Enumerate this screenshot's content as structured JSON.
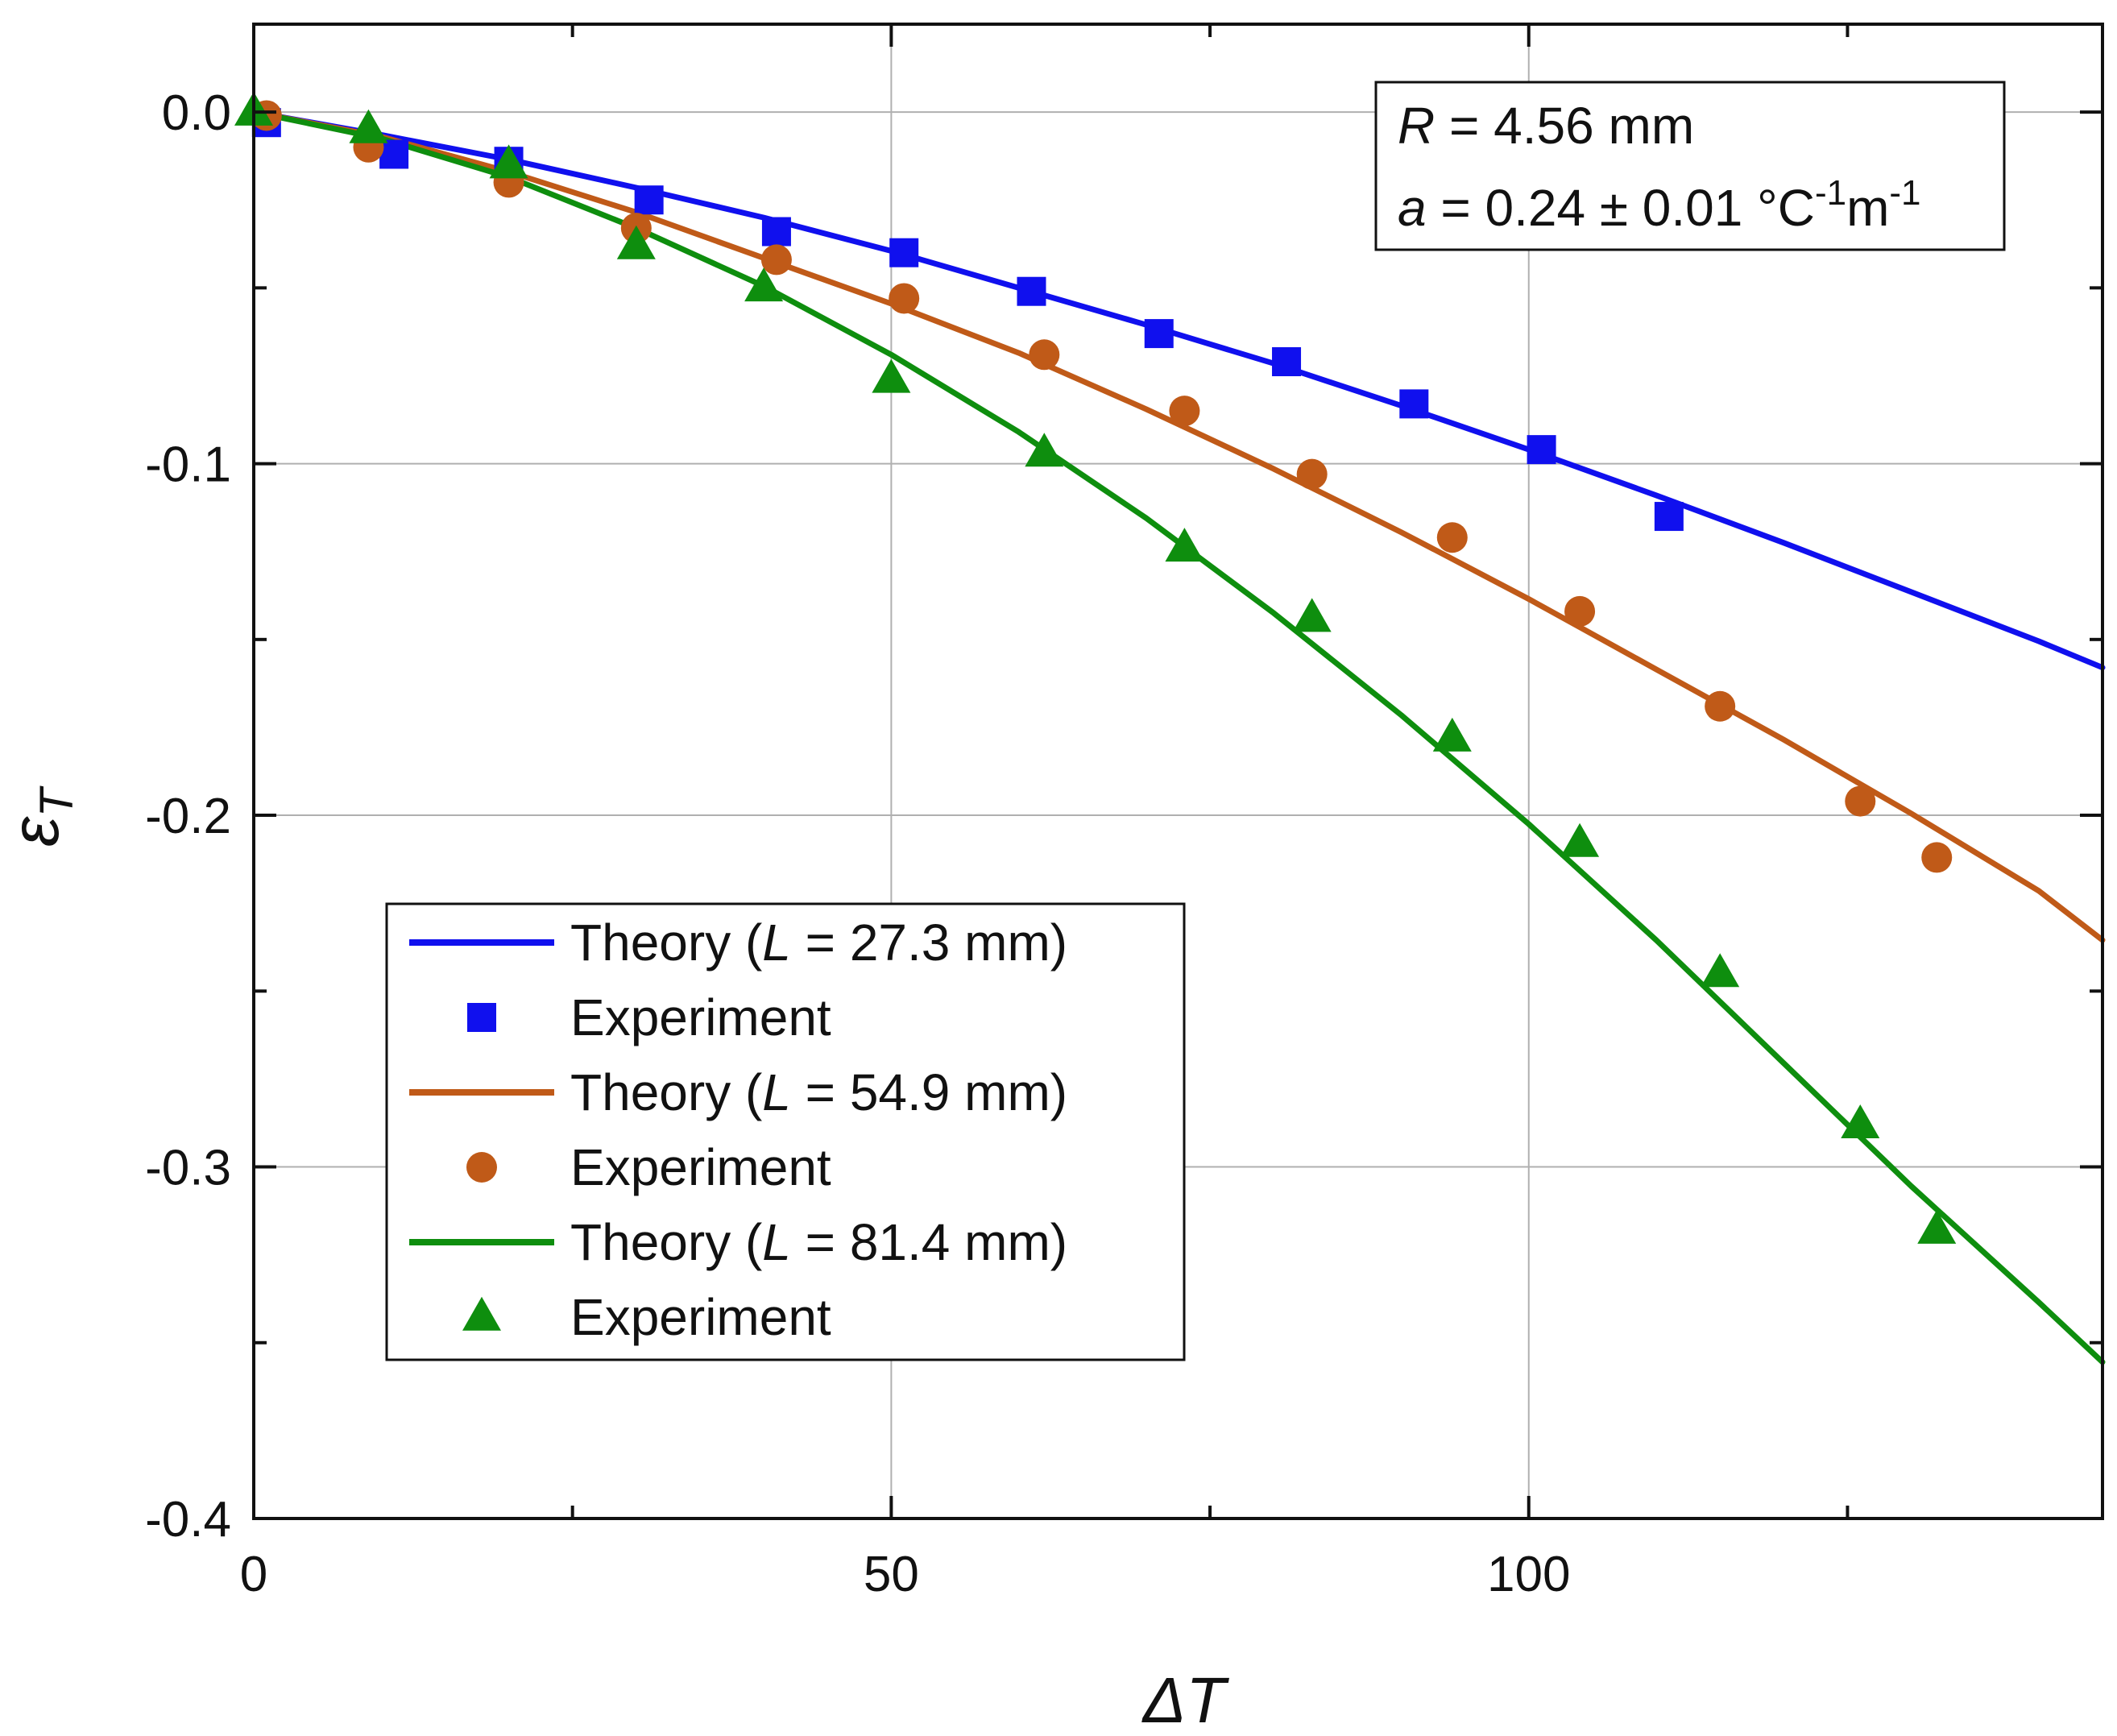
{
  "chart_data": {
    "type": "line",
    "title": "",
    "xlabel": "ΔT",
    "ylabel": "ε",
    "ylabel_sub": "T",
    "xlim": [
      0,
      145
    ],
    "ylim": [
      -0.4,
      0.025
    ],
    "xticks": [
      0,
      50,
      100
    ],
    "xtick_labels": [
      "0",
      "50",
      "100"
    ],
    "xminor": [
      25,
      75,
      125
    ],
    "yticks": [
      0.0,
      -0.1,
      -0.2,
      -0.3,
      -0.4
    ],
    "ytick_labels": [
      "0.0",
      "-0.1",
      "-0.2",
      "-0.3",
      "-0.4"
    ],
    "yminor": [
      -0.05,
      -0.15,
      -0.25,
      -0.35
    ],
    "grid": true,
    "legend_position": "lower-left",
    "annotation": {
      "line1": {
        "var": "R",
        "text": " = 4.56 mm"
      },
      "line2": {
        "var": "a",
        "value": " = 0.24 ± 0.01 °C",
        "sup1": "-1",
        "unit": "m",
        "sup2": "-1"
      }
    },
    "series": [
      {
        "name": "Theory (L = 27.3 mm)",
        "legend": {
          "prefix": "Theory (",
          "var": "L",
          "suffix": " = 27.3 mm)"
        },
        "kind": "line",
        "color": "#1010ee",
        "x": [
          0,
          10,
          20,
          30,
          40,
          50,
          60,
          70,
          80,
          90,
          100,
          110,
          120,
          130,
          140,
          145
        ],
        "y": [
          0,
          -0.0065,
          -0.0135,
          -0.0215,
          -0.03,
          -0.0395,
          -0.05,
          -0.0605,
          -0.0715,
          -0.0835,
          -0.096,
          -0.109,
          -0.1225,
          -0.1365,
          -0.1505,
          -0.158
        ]
      },
      {
        "name": "Experiment",
        "legend": {
          "prefix": "Experiment",
          "var": "",
          "suffix": ""
        },
        "kind": "scatter",
        "marker": "square",
        "color": "#1010ee",
        "x": [
          1,
          11,
          20,
          31,
          41,
          51,
          61,
          71,
          81,
          91,
          101,
          111
        ],
        "y": [
          -0.003,
          -0.012,
          -0.014,
          -0.025,
          -0.034,
          -0.04,
          -0.051,
          -0.063,
          -0.071,
          -0.083,
          -0.096,
          -0.115
        ]
      },
      {
        "name": "Theory (L = 54.9 mm)",
        "legend": {
          "prefix": "Theory (",
          "var": "L",
          "suffix": " = 54.9 mm)"
        },
        "kind": "line",
        "color": "#c05a18",
        "x": [
          0,
          10,
          20,
          30,
          40,
          50,
          60,
          70,
          80,
          90,
          100,
          110,
          120,
          130,
          140,
          145
        ],
        "y": [
          0,
          -0.007,
          -0.017,
          -0.0285,
          -0.0415,
          -0.0545,
          -0.0685,
          -0.0845,
          -0.1015,
          -0.1195,
          -0.1385,
          -0.1585,
          -0.1785,
          -0.1995,
          -0.2215,
          -0.2355
        ]
      },
      {
        "name": "Experiment",
        "legend": {
          "prefix": "Experiment",
          "var": "",
          "suffix": ""
        },
        "kind": "scatter",
        "marker": "circle",
        "color": "#c05a18",
        "x": [
          1,
          9,
          20,
          30,
          41,
          51,
          62,
          73,
          83,
          94,
          104,
          115,
          126,
          132
        ],
        "y": [
          -0.001,
          -0.01,
          -0.02,
          -0.033,
          -0.042,
          -0.053,
          -0.069,
          -0.085,
          -0.103,
          -0.121,
          -0.142,
          -0.169,
          -0.196,
          -0.212
        ]
      },
      {
        "name": "Theory (L = 81.4 mm)",
        "legend": {
          "prefix": "Theory (",
          "var": "L",
          "suffix": " = 81.4 mm)"
        },
        "kind": "line",
        "color": "#0e8e0e",
        "x": [
          0,
          10,
          20,
          30,
          40,
          50,
          60,
          70,
          80,
          90,
          100,
          110,
          120,
          130,
          140,
          145
        ],
        "y": [
          0,
          -0.0075,
          -0.0185,
          -0.033,
          -0.0495,
          -0.069,
          -0.091,
          -0.1155,
          -0.1425,
          -0.1715,
          -0.2025,
          -0.2355,
          -0.2705,
          -0.3055,
          -0.3385,
          -0.3555
        ]
      },
      {
        "name": "Experiment",
        "legend": {
          "prefix": "Experiment",
          "var": "",
          "suffix": ""
        },
        "kind": "scatter",
        "marker": "triangle",
        "color": "#0e8e0e",
        "x": [
          0,
          9,
          20,
          30,
          40,
          50,
          62,
          73,
          83,
          94,
          104,
          115,
          126,
          132
        ],
        "y": [
          0.0,
          -0.005,
          -0.015,
          -0.038,
          -0.05,
          -0.076,
          -0.097,
          -0.124,
          -0.144,
          -0.178,
          -0.208,
          -0.245,
          -0.288,
          -0.318
        ]
      }
    ]
  }
}
